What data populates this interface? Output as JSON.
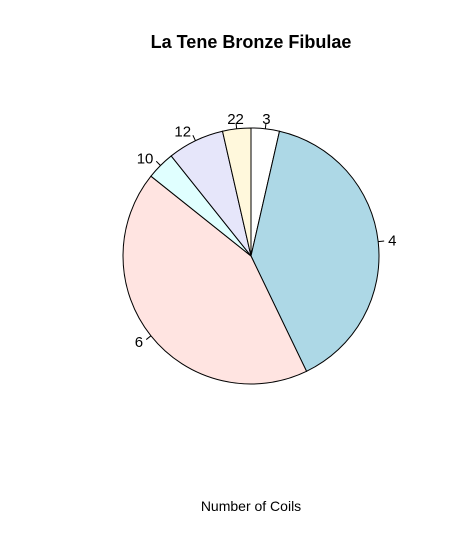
{
  "chart_data": {
    "type": "pie",
    "title": "La Tene Bronze Fibulae",
    "xlabel": "Number of Coils",
    "categories": [
      "3",
      "4",
      "6",
      "10",
      "12",
      "22"
    ],
    "values": [
      1,
      11,
      12,
      1,
      2,
      1
    ],
    "colors": [
      "#ffffff",
      "#add8e6",
      "#ffe4e1",
      "#e0ffff",
      "#e6e6fa",
      "#fff8dc"
    ],
    "start": "12 o'clock",
    "direction": "clockwise"
  }
}
